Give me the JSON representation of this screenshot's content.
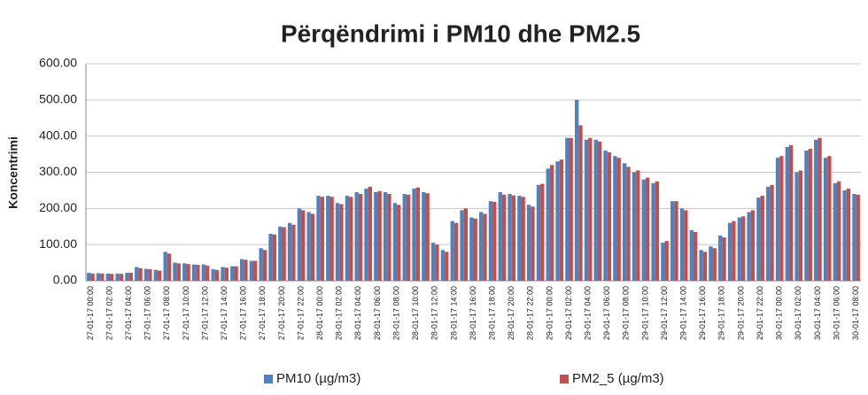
{
  "chart_data": {
    "type": "bar",
    "title": "Përqëndrimi i PM10 dhe PM2.5",
    "y_label": "Koncentrimi",
    "categories": [
      "27-01-17 00:00",
      null,
      "27-01-17 02:00",
      null,
      "27-01-17 04:00",
      null,
      "27-01-17 06:00",
      null,
      "27-01-17 08:00",
      null,
      "27-01-17 10:00",
      null,
      "27-01-17 12:00",
      null,
      "27-01-17 14:00",
      null,
      "27-01-17 16:00",
      null,
      "27-01-17 18:00",
      null,
      "27-01-17 20:00",
      null,
      "27-01-17 22:00",
      null,
      "28-01-17 00:00",
      null,
      "28-01-17 02:00",
      null,
      "28-01-17 04:00",
      null,
      "28-01-17 06:00",
      null,
      "28-01-17 08:00",
      null,
      "28-01-17 10:00",
      null,
      "28-01-17 12:00",
      null,
      "28-01-17 14:00",
      null,
      "28-01-17 16:00",
      null,
      "28-01-17 18:00",
      null,
      "28-01-17 20:00",
      null,
      "28-01-17 22:00",
      null,
      "29-01-17 00:00",
      null,
      "29-01-17 02:00",
      null,
      "29-01-17 04:00",
      null,
      "29-01-17 06:00",
      null,
      "29-01-17 08:00",
      null,
      "29-01-17 10:00",
      null,
      "29-01-17 12:00",
      null,
      "29-01-17 14:00",
      null,
      "29-01-17 16:00",
      null,
      "29-01-17 18:00",
      null,
      "29-01-17 20:00",
      null,
      "29-01-17 22:00",
      null,
      "30-01-17 00:00",
      null,
      "30-01-17 02:00",
      null,
      "30-01-17 04:00",
      null,
      "30-01-17 06:00",
      null,
      "30-01-17 08:00"
    ],
    "series": [
      {
        "name": "PM10 (µg/m3)",
        "color": "#4f81bd",
        "values": [
          22,
          21,
          20,
          20,
          22,
          38,
          33,
          30,
          80,
          50,
          48,
          45,
          45,
          32,
          38,
          40,
          60,
          55,
          90,
          130,
          150,
          160,
          200,
          190,
          235,
          235,
          215,
          235,
          245,
          255,
          245,
          245,
          215,
          240,
          255,
          245,
          105,
          85,
          165,
          195,
          175,
          190,
          220,
          245,
          240,
          235,
          210,
          265,
          310,
          330,
          395,
          500,
          390,
          390,
          360,
          345,
          325,
          300,
          280,
          270,
          105,
          220,
          200,
          140,
          85,
          95,
          125,
          160,
          175,
          190,
          230,
          260,
          340,
          370,
          300,
          360,
          390,
          340,
          270,
          250,
          240
        ]
      },
      {
        "name": "PM2_5 (µg/m3)",
        "color": "#c0504d",
        "values": [
          20,
          20,
          19,
          19,
          22,
          35,
          32,
          28,
          75,
          48,
          46,
          44,
          42,
          30,
          36,
          40,
          58,
          55,
          85,
          128,
          148,
          155,
          195,
          185,
          232,
          232,
          212,
          232,
          240,
          260,
          248,
          240,
          210,
          238,
          258,
          242,
          100,
          80,
          160,
          200,
          172,
          185,
          218,
          238,
          236,
          232,
          205,
          268,
          320,
          335,
          395,
          430,
          395,
          385,
          355,
          340,
          315,
          305,
          285,
          275,
          110,
          220,
          195,
          135,
          80,
          90,
          120,
          165,
          178,
          195,
          235,
          265,
          345,
          375,
          305,
          365,
          395,
          345,
          275,
          255,
          238
        ]
      }
    ],
    "ylim": [
      0,
      600
    ],
    "yticks": [
      {
        "value": 0,
        "label": "0.00"
      },
      {
        "value": 100,
        "label": "100.00"
      },
      {
        "value": 200,
        "label": "200.00"
      },
      {
        "value": 300,
        "label": "300.00"
      },
      {
        "value": 400,
        "label": "400.00"
      },
      {
        "value": 500,
        "label": "500.00"
      },
      {
        "value": 600,
        "label": "600.00"
      }
    ],
    "grid": true,
    "legend": "bottom"
  }
}
